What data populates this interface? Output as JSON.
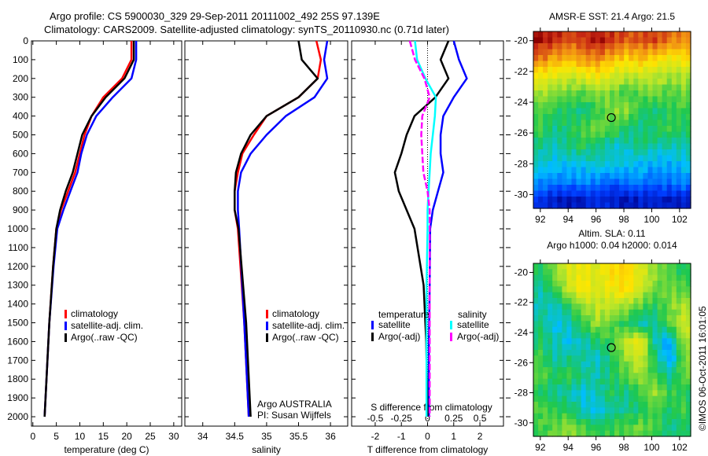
{
  "title_line1": "Argo profile: CS 5900030_329 29-Sep-2011 20111002_492 25S 97.139E",
  "title_line2": "Climatology: CARS2009. Satellite-adjusted climatology: synTS_20110930.nc (0.71d later)",
  "credit": "©IMOS 06-Oct-2011 16:01:05",
  "colors": {
    "clim": "#ff0000",
    "sat": "#0000ff",
    "argo": "#000000",
    "s_sat": "#00ffff",
    "s_argo": "#ff00ff"
  },
  "chart_data": [
    {
      "type": "line",
      "id": "temperature",
      "xlabel": "temperature (deg C)",
      "xlim": [
        -0.3,
        31.7
      ],
      "xticks": [
        0,
        5,
        10,
        15,
        20,
        25,
        30
      ],
      "ylim": [
        0,
        2050
      ],
      "yticks": [
        0,
        100,
        200,
        300,
        400,
        500,
        600,
        700,
        800,
        900,
        1000,
        1100,
        1200,
        1300,
        1400,
        1500,
        1600,
        1700,
        1800,
        1900,
        2000
      ],
      "legend": [
        "climatology",
        "satellite-adj. clim.",
        "Argo(..raw -QC)"
      ],
      "depth": [
        0,
        100,
        200,
        300,
        400,
        500,
        600,
        700,
        800,
        900,
        1000,
        1200,
        1500,
        1800,
        2000
      ],
      "series": [
        {
          "name": "climatology",
          "color": "clim",
          "values": [
            21,
            21,
            19,
            15,
            12.5,
            11,
            10,
            9,
            7.5,
            6,
            5,
            4.3,
            3.5,
            2.9,
            2.5
          ]
        },
        {
          "name": "satellite-adj. clim.",
          "color": "sat",
          "values": [
            22,
            22,
            21,
            17,
            13.5,
            11.5,
            10.3,
            9.5,
            8,
            6.5,
            5.2,
            4.4,
            3.5,
            2.9,
            2.5
          ]
        },
        {
          "name": "Argo(..raw -QC)",
          "color": "argo",
          "values": [
            21.5,
            21.5,
            19.5,
            15.5,
            12.5,
            10.5,
            9.5,
            8.5,
            7,
            5.8,
            5,
            4.3,
            3.5,
            2.9,
            2.5
          ]
        }
      ]
    },
    {
      "type": "line",
      "id": "salinity",
      "xlabel": "salinity",
      "xlim": [
        33.72,
        36.27
      ],
      "xticks": [
        34,
        34.5,
        35,
        35.5,
        36
      ],
      "ylim": [
        0,
        2050
      ],
      "legend": [
        "climatology",
        "satellite-adj. clim.",
        "Argo(..raw -QC)"
      ],
      "note1": "Argo AUSTRALIA",
      "note2": "PI: Susan Wijffels",
      "depth": [
        0,
        100,
        200,
        300,
        400,
        500,
        600,
        700,
        800,
        900,
        1000,
        1500,
        2000
      ],
      "series": [
        {
          "name": "climatology",
          "color": "clim",
          "values": [
            35.78,
            35.85,
            35.8,
            35.5,
            35.0,
            34.8,
            34.62,
            34.55,
            34.5,
            34.5,
            34.55,
            34.65,
            34.72
          ]
        },
        {
          "name": "satellite-adj. clim.",
          "color": "sat",
          "values": [
            35.95,
            35.9,
            35.95,
            35.75,
            35.3,
            35.0,
            34.75,
            34.6,
            34.55,
            34.55,
            34.57,
            34.65,
            34.72
          ]
        },
        {
          "name": "Argo(..raw -QC)",
          "color": "argo",
          "values": [
            35.5,
            35.55,
            35.8,
            35.5,
            35.0,
            34.75,
            34.6,
            34.52,
            34.5,
            34.5,
            34.56,
            34.68,
            34.75
          ]
        }
      ]
    },
    {
      "type": "line",
      "id": "difference",
      "xlabel": "T difference from climatology",
      "xlabel2": "S difference from climatology",
      "xlim": [
        -2.9,
        2.9
      ],
      "xticks": [
        -2,
        -1,
        0,
        1,
        2
      ],
      "s_xticks": [
        -0.5,
        -0.25,
        0,
        0.25,
        0.5
      ],
      "s_scale": 4,
      "ylim": [
        0,
        2050
      ],
      "legend_t": "temperature",
      "legend_s": "salinity",
      "legend": [
        "satellite",
        "Argo(-adj)",
        "satellite",
        "Argo(-adj)"
      ],
      "depth": [
        0,
        100,
        200,
        300,
        400,
        500,
        600,
        700,
        800,
        900,
        1000,
        1300,
        1600,
        2000
      ],
      "series": [
        {
          "name": "T satellite",
          "color": "sat",
          "values": [
            1.0,
            1.2,
            1.5,
            1.0,
            0.6,
            0.5,
            0.5,
            0.6,
            0.4,
            0.2,
            0.1,
            0.08,
            0.05,
            0.05
          ]
        },
        {
          "name": "T Argo(-adj)",
          "color": "argo",
          "values": [
            0.8,
            0.5,
            0.8,
            0.3,
            -0.5,
            -0.8,
            -1.0,
            -1.25,
            -1.1,
            -0.8,
            -0.5,
            -0.15,
            -0.05,
            0
          ]
        },
        {
          "name": "S satellite",
          "color": "s_sat",
          "values": [
            -0.12,
            -0.1,
            -0.02,
            0.08,
            0.07,
            0.05,
            0.03,
            0.02,
            0.01,
            0,
            0,
            -0.01,
            -0.01,
            -0.01
          ]
        },
        {
          "name": "S Argo(-adj)",
          "color": "s_argo",
          "values": [
            -0.17,
            -0.12,
            -0.03,
            0.02,
            -0.05,
            -0.06,
            -0.05,
            -0.04,
            0.0,
            0.02,
            0.02,
            0.02,
            0.02,
            0.02
          ]
        }
      ]
    },
    {
      "type": "heatmap",
      "id": "sst",
      "title": "AMSR-E SST: 21.4 Argo: 21.5",
      "xlim": [
        91.5,
        102.8
      ],
      "ylim": [
        -30.9,
        -19.4
      ],
      "xticks": [
        92,
        94,
        96,
        98,
        100,
        102
      ],
      "yticks": [
        -20,
        -22,
        -24,
        -26,
        -28,
        -30
      ],
      "marker": [
        97.1,
        -25
      ],
      "vrange": [
        17,
        25
      ],
      "grid": [
        [
          24.8,
          24.6,
          24.3,
          24.5,
          24.7,
          24.5,
          24.2,
          24.4,
          24.3,
          24.0,
          23.8
        ],
        [
          24.0,
          23.6,
          23.4,
          23.7,
          23.9,
          23.4,
          23.0,
          23.2,
          23.0,
          22.6,
          22.8
        ],
        [
          22.6,
          22.3,
          22.0,
          22.4,
          22.6,
          22.1,
          21.8,
          22.0,
          21.9,
          21.6,
          21.8
        ],
        [
          21.6,
          21.3,
          21.2,
          21.0,
          21.4,
          21.2,
          20.9,
          21.0,
          21.3,
          21.0,
          21.2
        ],
        [
          21.0,
          20.6,
          20.4,
          20.2,
          20.8,
          21.3,
          21.4,
          20.5,
          20.3,
          20.6,
          20.7
        ],
        [
          20.8,
          20.2,
          20.5,
          20.9,
          21.2,
          21.0,
          20.4,
          20.3,
          20.6,
          20.8,
          20.5
        ],
        [
          20.2,
          19.8,
          20.3,
          20.6,
          20.2,
          19.8,
          19.9,
          20.3,
          20.1,
          19.9,
          20.0
        ],
        [
          19.8,
          19.6,
          19.4,
          19.5,
          19.8,
          19.7,
          19.5,
          19.4,
          19.2,
          19.3,
          19.5
        ],
        [
          19.0,
          18.8,
          18.9,
          19.0,
          18.7,
          18.6,
          18.8,
          18.9,
          18.6,
          18.7,
          18.9
        ],
        [
          18.0,
          17.6,
          17.5,
          17.7,
          17.9,
          17.6,
          17.4,
          17.6,
          17.8,
          17.5,
          17.7
        ]
      ]
    },
    {
      "type": "heatmap",
      "id": "sla",
      "title": "Altim. SLA: 0.11",
      "subtitle": "Argo h1000: 0.04 h2000: 0.014",
      "xlim": [
        91.5,
        102.8
      ],
      "ylim": [
        -30.9,
        -19.4
      ],
      "xticks": [
        92,
        94,
        96,
        98,
        100,
        102
      ],
      "yticks": [
        -20,
        -22,
        -24,
        -26,
        -28,
        -30
      ],
      "marker": [
        97.1,
        -25
      ],
      "vrange": [
        -0.3,
        0.5
      ],
      "grid": [
        [
          0.05,
          0.15,
          0.22,
          0.25,
          0.22,
          0.28,
          0.3,
          0.22,
          0.15,
          0.1,
          0.05
        ],
        [
          0.0,
          0.08,
          0.2,
          0.28,
          0.2,
          0.25,
          0.28,
          0.2,
          0.12,
          0.12,
          0.1
        ],
        [
          0.0,
          -0.02,
          0.05,
          0.15,
          0.2,
          0.18,
          0.15,
          0.1,
          0.05,
          0.12,
          0.18
        ],
        [
          0.02,
          -0.05,
          0.0,
          0.08,
          0.15,
          0.1,
          0.05,
          0.0,
          0.0,
          0.1,
          0.2
        ],
        [
          0.05,
          0.0,
          -0.05,
          0.0,
          0.05,
          0.08,
          0.2,
          0.25,
          0.0,
          -0.08,
          0.15
        ],
        [
          0.08,
          0.0,
          0.02,
          0.0,
          -0.02,
          0.05,
          0.15,
          0.2,
          0.05,
          -0.1,
          0.12
        ],
        [
          0.1,
          0.05,
          0.08,
          0.02,
          0.0,
          0.05,
          0.1,
          0.15,
          0.08,
          0.02,
          0.1
        ],
        [
          0.05,
          0.02,
          0.0,
          -0.05,
          0.0,
          0.05,
          0.02,
          0.08,
          0.15,
          0.08,
          0.05
        ],
        [
          0.1,
          0.08,
          0.05,
          -0.02,
          -0.05,
          0.0,
          0.02,
          0.05,
          0.1,
          0.05,
          0.08
        ],
        [
          0.08,
          0.12,
          0.15,
          0.1,
          0.05,
          0.08,
          0.1,
          0.12,
          0.08,
          0.02,
          0.05
        ]
      ]
    }
  ]
}
